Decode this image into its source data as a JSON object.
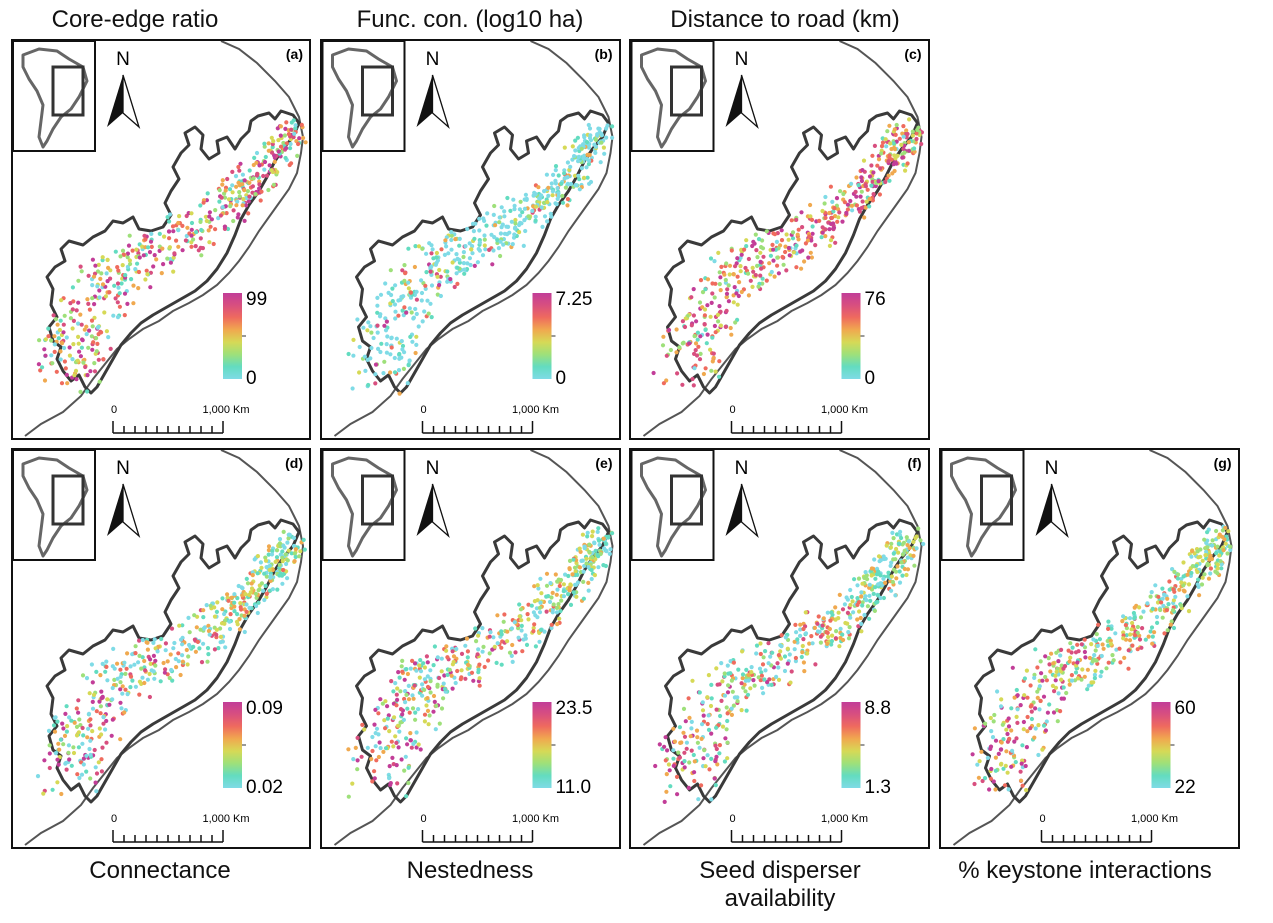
{
  "palette": [
    "#7fdbe6",
    "#63dcc0",
    "#9ee07a",
    "#d6d956",
    "#f0a94f",
    "#ef6b5e",
    "#d84f7f",
    "#c23d98"
  ],
  "colors": {
    "outline": "#555555",
    "forest_outline": "#3a3a3a",
    "frame": "#111111"
  },
  "icons": {
    "north_arrow": "north-arrow-icon",
    "inset_map": "south-america-inset-icon"
  },
  "panels": [
    {
      "id": "a",
      "label": "(a)",
      "title": "Core-edge ratio",
      "title_position": "top",
      "legend": {
        "max": "99",
        "min": "0"
      },
      "color_skew": 0.9,
      "scale": {
        "start": "0",
        "end": "1,000 Km"
      },
      "north": "N"
    },
    {
      "id": "b",
      "label": "(b)",
      "title": "Func. con. (log10 ha)",
      "title_position": "top",
      "legend": {
        "max": "7.25",
        "min": "0"
      },
      "color_skew": 3.5,
      "scale": {
        "start": "0",
        "end": "1,000 Km"
      },
      "north": "N"
    },
    {
      "id": "c",
      "label": "(c)",
      "title": "Distance to road (km)",
      "title_position": "top",
      "legend": {
        "max": "76",
        "min": "0"
      },
      "color_skew": 0.7,
      "scale": {
        "start": "0",
        "end": "1,000 Km"
      },
      "north": "N"
    },
    {
      "id": "d",
      "label": "(d)",
      "title": "Connectance",
      "title_position": "bottom",
      "legend": {
        "max": "0.09",
        "min": "0.02"
      },
      "color_skew": 1.3,
      "scale": {
        "start": "0",
        "end": "1,000 Km"
      },
      "north": "N"
    },
    {
      "id": "e",
      "label": "(e)",
      "title": "Nestedness",
      "title_position": "bottom",
      "legend": {
        "max": "23.5",
        "min": "11.0"
      },
      "color_skew": 1.3,
      "scale": {
        "start": "0",
        "end": "1,000 Km"
      },
      "north": "N"
    },
    {
      "id": "f",
      "label": "(f)",
      "title": "Seed disperser availability",
      "title_lines": [
        "Seed disperser",
        "availability"
      ],
      "title_position": "bottom",
      "legend": {
        "max": "8.8",
        "min": "1.3"
      },
      "color_skew": 1.2,
      "scale": {
        "start": "0",
        "end": "1,000 Km"
      },
      "north": "N"
    },
    {
      "id": "g",
      "label": "(g)",
      "title": "% keystone interactions",
      "title_position": "bottom",
      "legend": {
        "max": "60",
        "min": "22"
      },
      "color_skew": 1.1,
      "scale": {
        "start": "0",
        "end": "1,000 Km"
      },
      "north": "N"
    }
  ]
}
